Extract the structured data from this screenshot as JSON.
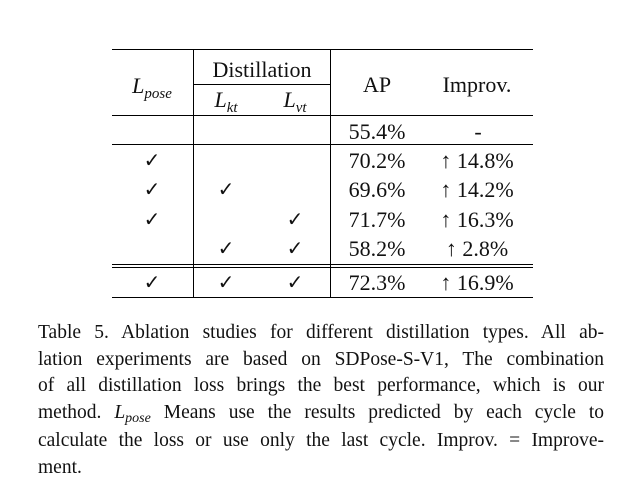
{
  "table": {
    "header": {
      "lpose_main": "L",
      "lpose_sub": "pose",
      "group": "Distillation",
      "lkt_main": "L",
      "lkt_sub": "kt",
      "lvt_main": "L",
      "lvt_sub": "vt",
      "ap": "AP",
      "improv": "Improv."
    },
    "check_symbol": "✓",
    "arrow_symbol": "↑",
    "rows": [
      {
        "lpose": "",
        "lkt": "",
        "lvt": "",
        "ap": "55.4%",
        "improv": "-"
      },
      {
        "lpose": "✓",
        "lkt": "",
        "lvt": "",
        "ap": "70.2%",
        "improv": "↑ 14.8%"
      },
      {
        "lpose": "✓",
        "lkt": "✓",
        "lvt": "",
        "ap": "69.6%",
        "improv": "↑ 14.2%"
      },
      {
        "lpose": "✓",
        "lkt": "",
        "lvt": "✓",
        "ap": "71.7%",
        "improv": "↑ 16.3%"
      },
      {
        "lpose": "",
        "lkt": "✓",
        "lvt": "✓",
        "ap": "58.2%",
        "improv": "↑ 2.8%"
      },
      {
        "lpose": "✓",
        "lkt": "✓",
        "lvt": "✓",
        "ap": "72.3%",
        "improv": "↑ 16.9%"
      }
    ]
  },
  "caption": {
    "line1": "Table 5.  Ablation studies for different distillation types.  All ab-",
    "line2": "lation experiments are based on SDPose-S-V1, The combination",
    "line3": "of all distillation loss brings the best performance, which is our",
    "line4_a": "method.",
    "line4_l": "L",
    "line4_sub": "pose",
    "line4_b": "Means use the results predicted by each cycle to",
    "line5": "calculate the loss or use only the last cycle.  Improv. = Improve-",
    "line6": "ment."
  }
}
